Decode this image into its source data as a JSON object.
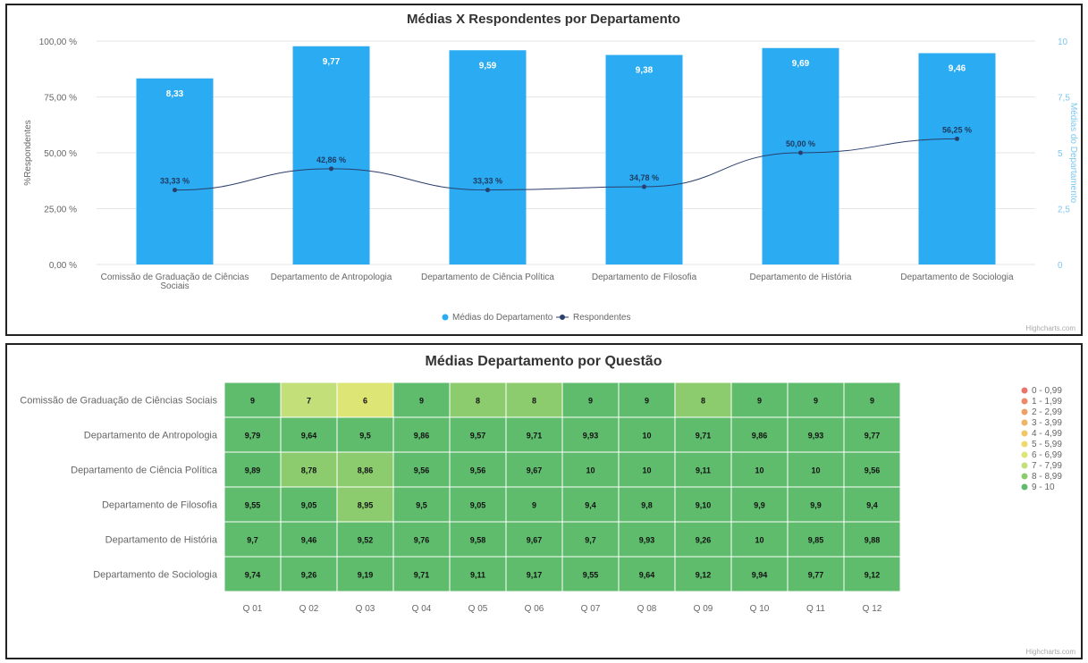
{
  "chart_data": [
    {
      "type": "bar",
      "title": "Médias X Respondentes por Departamento",
      "xlabel": "",
      "ylabel_left": "%Respondentes",
      "ylabel_right": "Médias do Departamento",
      "y_left_ticks": [
        "100,00 %",
        "75,00 %",
        "50,00 %",
        "25,00 %",
        "0,00 %"
      ],
      "y_left_range": [
        0,
        100
      ],
      "y_right_ticks": [
        "10",
        "7,5",
        "5",
        "2,5",
        "0"
      ],
      "y_right_range": [
        0,
        10
      ],
      "categories": [
        "Comissão de Graduação de Ciências Sociais",
        "Departamento de Antropologia",
        "Departamento de Ciência Política",
        "Departamento de Filosofia",
        "Departamento de História",
        "Departamento de Sociologia"
      ],
      "series": [
        {
          "name": "Médias do Departamento",
          "type": "bar",
          "axis": "right",
          "color": "#2aabf2",
          "values": [
            8.33,
            9.77,
            9.59,
            9.38,
            9.69,
            9.46
          ],
          "labels": [
            "8,33",
            "9,77",
            "9,59",
            "9,38",
            "9,69",
            "9,46"
          ]
        },
        {
          "name": "Respondentes",
          "type": "line",
          "axis": "left",
          "color": "#2a3f6b",
          "values": [
            33.33,
            42.86,
            33.33,
            34.78,
            50.0,
            56.25
          ],
          "labels": [
            "33,33 %",
            "42,86 %",
            "33,33 %",
            "34,78 %",
            "50,00 %",
            "56,25 %"
          ]
        }
      ],
      "legend": "bottom-center",
      "grid": true
    },
    {
      "type": "heatmap",
      "title": "Médias Departamento por Questão",
      "rows": [
        "Comissão de Graduação de Ciências Sociais",
        "Departamento de Antropologia",
        "Departamento de Ciência Política",
        "Departamento de Filosofia",
        "Departamento de História",
        "Departamento de Sociologia"
      ],
      "columns": [
        "Q 01",
        "Q 02",
        "Q 03",
        "Q 04",
        "Q 05",
        "Q 06",
        "Q 07",
        "Q 08",
        "Q 09",
        "Q 10",
        "Q 11",
        "Q 12"
      ],
      "values": [
        [
          "9",
          "7",
          "6",
          "9",
          "8",
          "8",
          "9",
          "9",
          "8",
          "9",
          "9",
          "9"
        ],
        [
          "9,79",
          "9,64",
          "9,5",
          "9,86",
          "9,57",
          "9,71",
          "9,93",
          "10",
          "9,71",
          "9,86",
          "9,93",
          "9,77"
        ],
        [
          "9,89",
          "8,78",
          "8,86",
          "9,56",
          "9,56",
          "9,67",
          "10",
          "10",
          "9,11",
          "10",
          "10",
          "9,56"
        ],
        [
          "9,55",
          "9,05",
          "8,95",
          "9,5",
          "9,05",
          "9",
          "9,4",
          "9,8",
          "9,10",
          "9,9",
          "9,9",
          "9,4"
        ],
        [
          "9,7",
          "9,46",
          "9,52",
          "9,76",
          "9,58",
          "9,67",
          "9,7",
          "9,93",
          "9,26",
          "10",
          "9,85",
          "9,88"
        ],
        [
          "9,74",
          "9,26",
          "9,19",
          "9,71",
          "9,11",
          "9,17",
          "9,55",
          "9,64",
          "9,12",
          "9,94",
          "9,77",
          "9,12"
        ]
      ],
      "legend": [
        {
          "label": "0 - 0,99",
          "color": "#e8746a"
        },
        {
          "label": "1 - 1,99",
          "color": "#ea8a68"
        },
        {
          "label": "2 - 2,99",
          "color": "#eda067"
        },
        {
          "label": "3 - 3,99",
          "color": "#efb566"
        },
        {
          "label": "4 - 4,99",
          "color": "#f0c766"
        },
        {
          "label": "5 - 5,99",
          "color": "#eed96c"
        },
        {
          "label": "6 - 6,99",
          "color": "#dde575"
        },
        {
          "label": "7 - 7,99",
          "color": "#c3df7a"
        },
        {
          "label": "8 - 8,99",
          "color": "#8ccc6e"
        },
        {
          "label": "9 - 10",
          "color": "#5fbc6d"
        }
      ]
    }
  ]
}
